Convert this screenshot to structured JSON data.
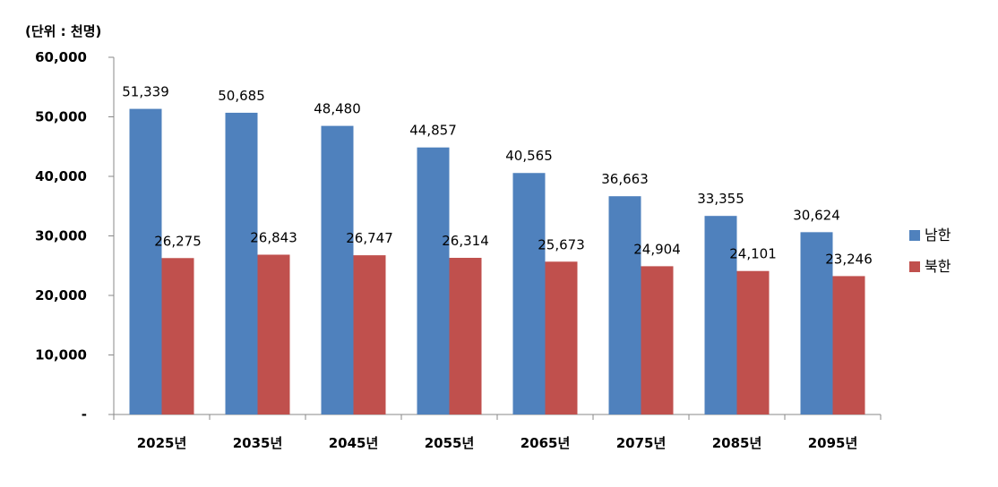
{
  "chart_data": {
    "type": "bar",
    "unit_label": "(단위 : 천명)",
    "categories": [
      "2025년",
      "2035년",
      "2045년",
      "2055년",
      "2065년",
      "2075년",
      "2085년",
      "2095년"
    ],
    "series": [
      {
        "name": "남한",
        "color": "#4f81bd",
        "values": [
          51339,
          50685,
          48480,
          44857,
          40565,
          36663,
          33355,
          30624
        ],
        "labels": [
          "51,339",
          "50,685",
          "48,480",
          "44,857",
          "40,565",
          "36,663",
          "33,355",
          "30,624"
        ]
      },
      {
        "name": "북한",
        "color": "#c0504d",
        "values": [
          26275,
          26843,
          26747,
          26314,
          25673,
          24904,
          24101,
          23246
        ],
        "labels": [
          "26,275",
          "26,843",
          "26,747",
          "26,314",
          "25,673",
          "24,904",
          "24,101",
          "23,246"
        ]
      }
    ],
    "ylim": [
      0,
      60000
    ],
    "y_ticks": [
      0,
      10000,
      20000,
      30000,
      40000,
      50000,
      60000
    ],
    "y_tick_labels": [
      "-",
      "10,000",
      "20,000",
      "30,000",
      "40,000",
      "50,000",
      "60,000"
    ],
    "grid": false,
    "legend_position": "right",
    "axis_color": "#888888"
  }
}
